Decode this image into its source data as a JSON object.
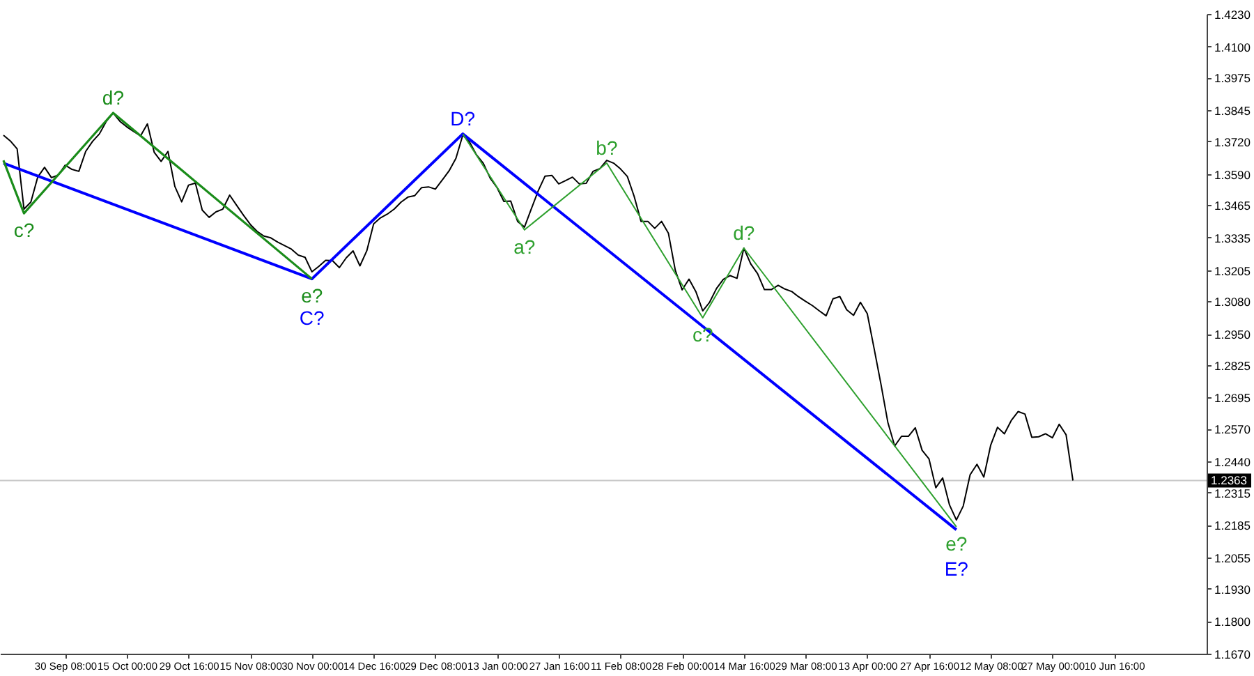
{
  "chart_data": {
    "type": "line",
    "ylim": [
      1.167,
      1.423
    ],
    "categories": [
      null,
      null,
      null,
      null,
      null,
      null,
      null,
      null,
      null,
      "30 Sep 08:00",
      null,
      null,
      null,
      null,
      null,
      null,
      null,
      null,
      "15 Oct 00:00",
      null,
      null,
      null,
      null,
      null,
      null,
      null,
      null,
      "29 Oct 16:00",
      null,
      null,
      null,
      null,
      null,
      null,
      null,
      null,
      "15 Nov 08:00",
      null,
      null,
      null,
      null,
      null,
      null,
      null,
      null,
      "30 Nov 00:00",
      null,
      null,
      null,
      null,
      null,
      null,
      null,
      null,
      "14 Dec 16:00",
      null,
      null,
      null,
      null,
      null,
      null,
      null,
      null,
      "29 Dec 08:00",
      null,
      null,
      null,
      null,
      null,
      null,
      null,
      null,
      "13 Jan 00:00",
      null,
      null,
      null,
      null,
      null,
      null,
      null,
      null,
      "27 Jan 16:00",
      null,
      null,
      null,
      null,
      null,
      null,
      null,
      null,
      "11 Feb 08:00",
      null,
      null,
      null,
      null,
      null,
      null,
      null,
      null,
      "28 Feb 00:00",
      null,
      null,
      null,
      null,
      null,
      null,
      null,
      null,
      "14 Mar 16:00",
      null,
      null,
      null,
      null,
      null,
      null,
      null,
      null,
      "29 Mar 08:00",
      null,
      null,
      null,
      null,
      null,
      null,
      null,
      null,
      "13 Apr 00:00",
      null,
      null,
      null,
      null,
      null,
      null,
      null,
      null,
      "27 Apr 16:00",
      null,
      null,
      null,
      null,
      null,
      null,
      null,
      null,
      "12 May 08:00",
      null,
      null,
      null,
      null,
      null,
      null,
      null,
      null,
      "27 May 00:00",
      null,
      null,
      null,
      null,
      null,
      null,
      null,
      null,
      "10 Jun 16:00",
      null,
      null,
      null,
      null,
      null,
      null,
      null,
      null,
      null,
      null,
      null,
      null,
      null
    ],
    "yticks": [
      {
        "value": 1.423,
        "label": "1.4230"
      },
      {
        "value": 1.41,
        "label": "1.4100"
      },
      1.3975,
      1.3845,
      {
        "value": 1.372,
        "label": "1.3720"
      },
      {
        "value": 1.359,
        "label": "1.3590"
      },
      1.3465,
      1.3335,
      1.3205,
      {
        "value": 1.308,
        "label": "1.3080"
      },
      {
        "value": 1.295,
        "label": "1.2950"
      },
      1.2825,
      1.2695,
      {
        "value": 1.257,
        "label": "1.2570"
      },
      {
        "value": 1.244,
        "label": "1.2440"
      },
      1.2315,
      1.2185,
      1.2055,
      {
        "value": 1.193,
        "label": "1.1930"
      },
      {
        "value": 1.18,
        "label": "1.1800"
      },
      {
        "value": 1.167,
        "label": "1.1670"
      }
    ],
    "ref_lines": [
      {
        "axis": "y",
        "value": 1.2363,
        "label": "1.2363",
        "color": "#c8c8c8"
      }
    ],
    "series": [
      {
        "color": "#000000",
        "values": [
          1.3745,
          1.3722,
          1.369,
          1.3449,
          1.3477,
          1.3577,
          1.3616,
          1.3575,
          1.3585,
          1.3625,
          1.3608,
          1.36,
          1.368,
          1.372,
          1.375,
          1.38,
          1.3834,
          1.38,
          1.3778,
          1.376,
          1.3742,
          1.379,
          1.3676,
          1.364,
          1.368,
          1.354,
          1.3478,
          1.3545,
          1.3553,
          1.3445,
          1.3416,
          1.3438,
          1.3449,
          1.3505,
          1.3465,
          1.3425,
          1.3388,
          1.336,
          1.3341,
          1.3334,
          1.3317,
          1.3303,
          1.3289,
          1.3265,
          1.3256,
          1.3198,
          1.322,
          1.3244,
          1.3243,
          1.3215,
          1.3254,
          1.3282,
          1.3222,
          1.3282,
          1.339,
          1.3414,
          1.3429,
          1.3449,
          1.3477,
          1.3497,
          1.3503,
          1.3535,
          1.3538,
          1.3529,
          1.3565,
          1.3602,
          1.3652,
          1.3745,
          1.3717,
          1.3666,
          1.3632,
          1.3573,
          1.3535,
          1.348,
          1.3481,
          1.34,
          1.3377,
          1.345,
          1.3522,
          1.3581,
          1.3584,
          1.355,
          1.3563,
          1.3577,
          1.355,
          1.3552,
          1.36,
          1.3611,
          1.3644,
          1.3633,
          1.361,
          1.358,
          1.35,
          1.34,
          1.34,
          1.3372,
          1.34,
          1.3352,
          1.3204,
          1.3126,
          1.3169,
          1.3119,
          1.3042,
          1.3076,
          1.3131,
          1.3168,
          1.3183,
          1.3172,
          1.3293,
          1.323,
          1.3191,
          1.3127,
          1.3127,
          1.3144,
          1.3129,
          1.3119,
          1.3098,
          1.308,
          1.3063,
          1.3042,
          1.3022,
          1.309,
          1.3099,
          1.3046,
          1.3024,
          1.3076,
          1.3031,
          1.2891,
          1.2748,
          1.2596,
          1.2501,
          1.254,
          1.254,
          1.2574,
          1.2484,
          1.245,
          1.2334,
          1.2373,
          1.2265,
          1.2205,
          1.2261,
          1.2386,
          1.2428,
          1.2377,
          1.2504,
          1.2576,
          1.255,
          1.2603,
          1.2639,
          1.2629,
          1.2536,
          1.2538,
          1.255,
          1.2534,
          1.2588,
          1.2546,
          1.2363,
          null,
          null,
          null,
          null,
          null,
          null,
          null,
          null,
          null,
          null,
          null,
          null,
          null,
          null,
          null,
          null,
          null,
          null,
          null
        ]
      },
      {
        "color": "#0000ff",
        "values": [
          1.3633,
          null,
          null,
          null,
          null,
          null,
          null,
          null,
          null,
          null,
          null,
          null,
          null,
          null,
          null,
          null,
          null,
          null,
          null,
          null,
          null,
          null,
          null,
          null,
          null,
          null,
          null,
          null,
          null,
          null,
          null,
          null,
          null,
          null,
          null,
          null,
          null,
          null,
          null,
          null,
          null,
          null,
          null,
          null,
          null,
          1.317,
          null,
          null,
          null,
          null,
          null,
          null,
          null,
          null,
          null,
          null,
          null,
          null,
          null,
          null,
          null,
          null,
          null,
          null,
          null,
          null,
          null,
          1.375,
          null,
          null,
          null,
          null,
          null,
          null,
          null,
          null,
          null,
          null,
          null,
          null,
          null,
          null,
          null,
          null,
          null,
          null,
          null,
          null,
          null,
          null,
          null,
          null,
          null,
          null,
          null,
          null,
          null,
          null,
          null,
          null,
          null,
          null,
          null,
          null,
          null,
          null,
          null,
          null,
          null,
          null,
          null,
          null,
          null,
          null,
          null,
          null,
          null,
          null,
          null,
          null,
          null,
          null,
          null,
          null,
          null,
          null,
          null,
          null,
          null,
          null,
          null,
          null,
          null,
          null,
          null,
          null,
          null,
          null,
          null,
          1.2166,
          null,
          null,
          null,
          null,
          null,
          null,
          null,
          null,
          null,
          null,
          null,
          null,
          null,
          null,
          null,
          null,
          null,
          null,
          null,
          null,
          null,
          null,
          null,
          null,
          null,
          null,
          null,
          null,
          null,
          null,
          null,
          null,
          null,
          null,
          null,
          null
        ],
        "value_labels": [
          null,
          null,
          null,
          null,
          null,
          null,
          null,
          null,
          null,
          null,
          null,
          null,
          null,
          null,
          null,
          null,
          null,
          null,
          null,
          null,
          null,
          null,
          null,
          null,
          null,
          null,
          null,
          null,
          null,
          null,
          null,
          null,
          null,
          null,
          null,
          null,
          null,
          null,
          null,
          null,
          null,
          null,
          null,
          null,
          null,
          "C?",
          null,
          null,
          null,
          null,
          null,
          null,
          null,
          null,
          null,
          null,
          null,
          null,
          null,
          null,
          null,
          null,
          null,
          null,
          null,
          null,
          null,
          "D?",
          null,
          null,
          null,
          null,
          null,
          null,
          null,
          null,
          null,
          null,
          null,
          null,
          null,
          null,
          null,
          null,
          null,
          null,
          null,
          null,
          null,
          null,
          null,
          null,
          null,
          null,
          null,
          null,
          null,
          null,
          null,
          null,
          null,
          null,
          null,
          null,
          null,
          null,
          null,
          null,
          null,
          null,
          null,
          null,
          null,
          null,
          null,
          null,
          null,
          null,
          null,
          null,
          null,
          null,
          null,
          null,
          null,
          null,
          null,
          null,
          null,
          null,
          null,
          null,
          null,
          null,
          null,
          null,
          null,
          null,
          null,
          "E?",
          null,
          null,
          null,
          null,
          null,
          null,
          null,
          null,
          null,
          null,
          null,
          null,
          null,
          null,
          null,
          null,
          null,
          null,
          null,
          null,
          null,
          null,
          null,
          null,
          null,
          null,
          null,
          null,
          null,
          null,
          null,
          null,
          null,
          null,
          null,
          null
        ]
      },
      {
        "color": "#1a8c1a",
        "values": [
          1.3644,
          null,
          null,
          1.3432,
          null,
          null,
          null,
          null,
          null,
          null,
          null,
          null,
          null,
          null,
          null,
          null,
          1.3834,
          null,
          null,
          null,
          null,
          null,
          null,
          null,
          null,
          null,
          null,
          null,
          null,
          null,
          null,
          null,
          null,
          null,
          null,
          null,
          null,
          null,
          null,
          null,
          null,
          null,
          null,
          null,
          null,
          1.317,
          null,
          null,
          null,
          null,
          null,
          null,
          null,
          null,
          null,
          null,
          null,
          null,
          null,
          null,
          null,
          null,
          null,
          null,
          null,
          null,
          null,
          null,
          null,
          null,
          null,
          null,
          null,
          null,
          null,
          null,
          null,
          null,
          null,
          null,
          null,
          null,
          null,
          null,
          null,
          null,
          null,
          null,
          null,
          null,
          null,
          null,
          null,
          null,
          null,
          null,
          null,
          null,
          null,
          null,
          null,
          null,
          null,
          null,
          null,
          null,
          null,
          null,
          null,
          null,
          null,
          null,
          null,
          null,
          null,
          null,
          null,
          null,
          null,
          null,
          null,
          null,
          null,
          null,
          null,
          null,
          null,
          null,
          null,
          null,
          null,
          null,
          null,
          null,
          null,
          null,
          null,
          null,
          null,
          null,
          null,
          null,
          null,
          null,
          null,
          null,
          null,
          null,
          null,
          null,
          null,
          null,
          null,
          null,
          null,
          null,
          null,
          null,
          null,
          null,
          null,
          null,
          null,
          null,
          null,
          null,
          null,
          null,
          null,
          null,
          null,
          null,
          null,
          null,
          null,
          null
        ],
        "value_labels": [
          null,
          null,
          null,
          "c?",
          null,
          null,
          null,
          null,
          null,
          null,
          null,
          null,
          null,
          null,
          null,
          null,
          "d?",
          null,
          null,
          null,
          null,
          null,
          null,
          null,
          null,
          null,
          null,
          null,
          null,
          null,
          null,
          null,
          null,
          null,
          null,
          null,
          null,
          null,
          null,
          null,
          null,
          null,
          null,
          null,
          null,
          "e?",
          null,
          null,
          null,
          null,
          null,
          null,
          null,
          null,
          null,
          null,
          null,
          null,
          null,
          null,
          null,
          null,
          null,
          null,
          null,
          null,
          null,
          null,
          null,
          null,
          null,
          null,
          null,
          null,
          null,
          null,
          null,
          null,
          null,
          null,
          null,
          null,
          null,
          null,
          null,
          null,
          null,
          null,
          null,
          null,
          null,
          null,
          null,
          null,
          null,
          null,
          null,
          null,
          null,
          null,
          null,
          null,
          null,
          null,
          null,
          null,
          null,
          null,
          null,
          null,
          null,
          null,
          null,
          null,
          null,
          null,
          null,
          null,
          null,
          null,
          null,
          null,
          null,
          null,
          null,
          null,
          null,
          null,
          null,
          null,
          null,
          null,
          null,
          null,
          null,
          null,
          null,
          null,
          null,
          null,
          null,
          null,
          null,
          null,
          null,
          null,
          null,
          null,
          null,
          null,
          null,
          null,
          null,
          null,
          null,
          null,
          null,
          null,
          null,
          null,
          null,
          null,
          null,
          null,
          null,
          null,
          null,
          null,
          null,
          null,
          null,
          null,
          null,
          null,
          null,
          null
        ]
      },
      {
        "color": "#2ea02e",
        "values": [
          null,
          null,
          null,
          null,
          null,
          null,
          null,
          null,
          null,
          null,
          null,
          null,
          null,
          null,
          null,
          null,
          null,
          null,
          null,
          null,
          null,
          null,
          null,
          null,
          null,
          null,
          null,
          null,
          null,
          null,
          null,
          null,
          null,
          null,
          null,
          null,
          null,
          null,
          null,
          null,
          null,
          null,
          null,
          null,
          null,
          null,
          null,
          null,
          null,
          null,
          null,
          null,
          null,
          null,
          null,
          null,
          null,
          null,
          null,
          null,
          null,
          null,
          null,
          null,
          null,
          null,
          null,
          1.375,
          null,
          null,
          null,
          null,
          null,
          null,
          null,
          null,
          1.3366,
          null,
          null,
          null,
          null,
          null,
          null,
          null,
          null,
          null,
          null,
          null,
          1.3633,
          null,
          null,
          null,
          null,
          null,
          null,
          null,
          null,
          null,
          null,
          null,
          null,
          null,
          1.3014,
          null,
          null,
          null,
          null,
          null,
          1.3293,
          null,
          null,
          null,
          null,
          null,
          null,
          null,
          null,
          null,
          null,
          null,
          null,
          null,
          null,
          null,
          null,
          null,
          null,
          null,
          null,
          null,
          null,
          null,
          null,
          null,
          null,
          null,
          null,
          null,
          null,
          1.2178,
          null,
          null,
          null,
          null,
          null,
          null,
          null,
          null,
          null,
          null,
          null,
          null,
          null,
          null,
          null,
          null,
          null,
          null,
          null,
          null,
          null,
          null,
          null,
          null,
          null,
          null,
          null,
          null,
          null,
          null,
          null,
          null,
          null,
          null,
          null,
          null
        ],
        "value_labels": [
          null,
          null,
          null,
          null,
          null,
          null,
          null,
          null,
          null,
          null,
          null,
          null,
          null,
          null,
          null,
          null,
          null,
          null,
          null,
          null,
          null,
          null,
          null,
          null,
          null,
          null,
          null,
          null,
          null,
          null,
          null,
          null,
          null,
          null,
          null,
          null,
          null,
          null,
          null,
          null,
          null,
          null,
          null,
          null,
          null,
          null,
          null,
          null,
          null,
          null,
          null,
          null,
          null,
          null,
          null,
          null,
          null,
          null,
          null,
          null,
          null,
          null,
          null,
          null,
          null,
          null,
          null,
          null,
          null,
          null,
          null,
          null,
          null,
          null,
          null,
          null,
          "a?",
          null,
          null,
          null,
          null,
          null,
          null,
          null,
          null,
          null,
          null,
          null,
          "b?",
          null,
          null,
          null,
          null,
          null,
          null,
          null,
          null,
          null,
          null,
          null,
          null,
          null,
          "c?",
          null,
          null,
          null,
          null,
          null,
          "d?",
          null,
          null,
          null,
          null,
          null,
          null,
          null,
          null,
          null,
          null,
          null,
          null,
          null,
          null,
          null,
          null,
          null,
          null,
          null,
          null,
          null,
          null,
          null,
          null,
          null,
          null,
          null,
          null,
          null,
          null,
          "e?",
          null,
          null,
          null,
          null,
          null,
          null,
          null,
          null,
          null,
          null,
          null,
          null,
          null,
          null,
          null,
          null,
          null,
          null,
          null,
          null,
          null,
          null,
          null,
          null,
          null,
          null,
          null,
          null,
          null,
          null,
          null,
          null,
          null,
          null,
          null,
          null
        ]
      }
    ]
  }
}
